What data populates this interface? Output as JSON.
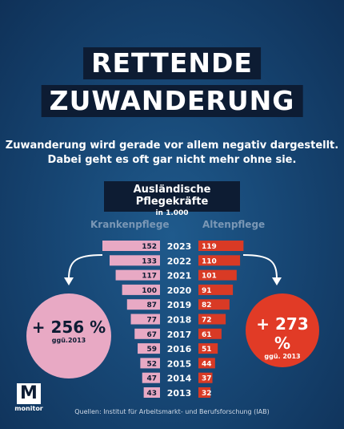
{
  "header": {
    "title_line1": "RETTENDE",
    "title_line2": "ZUWANDERUNG",
    "subtitle_line1": "Zuwanderung wird gerade vor allem negativ dargestellt.",
    "subtitle_line2": "Dabei geht es oft gar nicht mehr ohne sie."
  },
  "chart_title": {
    "title": "Ausländische Pflegekräfte",
    "unit": "in 1.000"
  },
  "chart_data": {
    "type": "bar",
    "title": "Ausländische Pflegekräfte",
    "subtitle": "in 1.000",
    "categories": [
      "2023",
      "2022",
      "2021",
      "2020",
      "2019",
      "2018",
      "2017",
      "2016",
      "2015",
      "2014",
      "2013"
    ],
    "series": [
      {
        "name": "Krankenpflege",
        "values": [
          152,
          133,
          117,
          100,
          87,
          77,
          67,
          59,
          52,
          47,
          43
        ],
        "color": "#e8a9c4"
      },
      {
        "name": "Altenpflege",
        "values": [
          119,
          110,
          101,
          91,
          82,
          72,
          61,
          51,
          44,
          37,
          32
        ],
        "color": "#d93a25"
      }
    ],
    "layout": "butterfly"
  },
  "callouts": {
    "left_value": "+ 256 %",
    "left_note": "ggü.2013",
    "right_value": "+ 273 %",
    "right_note": "ggü. 2013"
  },
  "footer": {
    "logo_mark": "M",
    "logo_word": "monitor",
    "source": "Quellen: Institut für Arbeitsmarkt- und Berufsforschung (IAB)"
  },
  "colors": {
    "background": "#174775",
    "dark_box": "#0d1c33",
    "pink": "#e8a9c4",
    "red": "#d93a25",
    "red_circle": "#e13b26"
  }
}
